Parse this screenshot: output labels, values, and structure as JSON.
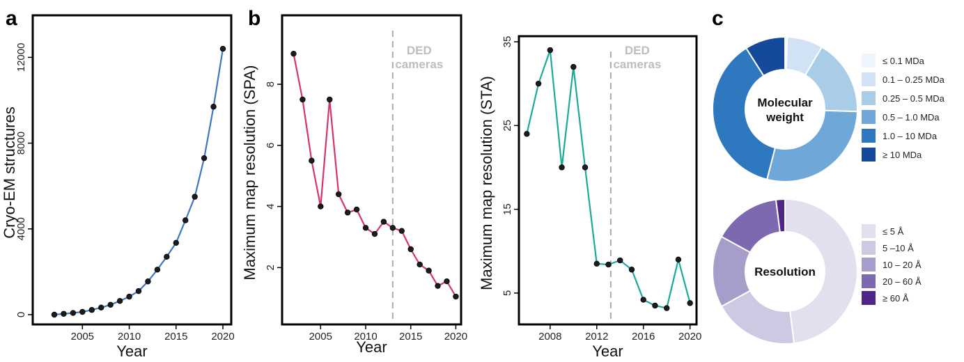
{
  "panel_labels": {
    "a": "a",
    "b": "b",
    "c": "c"
  },
  "chart_data": [
    {
      "id": "a",
      "type": "line",
      "xlabel": "Year",
      "ylabel": "Cryo-EM structures",
      "xlim": [
        2002,
        2020
      ],
      "ylim": [
        0,
        12500
      ],
      "xticks": [
        "2005",
        "2010",
        "2015",
        "2020"
      ],
      "yticks": [
        "0",
        "4000",
        "8000",
        "12000"
      ],
      "color": "#3a78c4",
      "x": [
        2002,
        2003,
        2004,
        2005,
        2006,
        2007,
        2008,
        2009,
        2010,
        2011,
        2012,
        2013,
        2014,
        2015,
        2016,
        2017,
        2018,
        2019,
        2020
      ],
      "y": [
        0,
        40,
        80,
        130,
        220,
        330,
        460,
        640,
        840,
        1100,
        1550,
        2100,
        2700,
        3350,
        4400,
        5500,
        7300,
        9700,
        12400
      ]
    },
    {
      "id": "b-left",
      "type": "line",
      "xlabel": "Year",
      "ylabel": "Maximum map resolution (SPA)",
      "xlim": [
        2001.5,
        2020.2
      ],
      "ylim": [
        0.8,
        9.3
      ],
      "xticks": [
        "2005",
        "2010",
        "2015",
        "2020"
      ],
      "yticks": [
        "2",
        "4",
        "6",
        "8"
      ],
      "color": "#d6336c",
      "annotation": {
        "text_line1": "DED",
        "text_line2": "cameras",
        "x": 2013
      },
      "x": [
        2002,
        2003,
        2004,
        2005,
        2006,
        2007,
        2008,
        2009,
        2010,
        2011,
        2012,
        2013,
        2014,
        2015,
        2016,
        2017,
        2018,
        2019,
        2020
      ],
      "y": [
        9.0,
        7.5,
        5.5,
        4.0,
        7.5,
        4.4,
        3.8,
        3.9,
        3.3,
        3.1,
        3.5,
        3.3,
        3.2,
        2.6,
        2.1,
        1.9,
        1.4,
        1.55,
        1.05
      ]
    },
    {
      "id": "b-right",
      "type": "line",
      "xlabel": "Year",
      "ylabel": "Maximum map resolution (STA)",
      "xlim": [
        2005.8,
        2020.2
      ],
      "ylim": [
        3,
        35
      ],
      "xticks": [
        "2008",
        "2012",
        "2016",
        "2020"
      ],
      "yticks": [
        "5",
        "15",
        "25",
        "35"
      ],
      "color": "#1aaa9a",
      "annotation": {
        "text_line1": "DED",
        "text_line2": "cameras",
        "x": 2013.2
      },
      "x": [
        2006,
        2007,
        2008,
        2009,
        2010,
        2011,
        2012,
        2013,
        2014,
        2015,
        2016,
        2017,
        2018,
        2019,
        2020
      ],
      "y": [
        24,
        30,
        34,
        20,
        32,
        20,
        8.5,
        8.4,
        8.9,
        7.8,
        4.2,
        3.5,
        3.2,
        9.0,
        3.8
      ]
    },
    {
      "id": "c-top",
      "type": "pie",
      "center_label_line1": "Molecular",
      "center_label_line2": "weight",
      "slices": [
        {
          "label": "≤ 0.1 MDa",
          "value": 0.5,
          "color": "#eef5fc"
        },
        {
          "label": "0.1 – 0.25 MDa",
          "value": 8,
          "color": "#d0e2f3"
        },
        {
          "label": "0.25 – 0.5 MDa",
          "value": 17,
          "color": "#a9cde6"
        },
        {
          "label": "0.5 – 1.0 MDa",
          "value": 28.5,
          "color": "#6fa8d8"
        },
        {
          "label": "1.0 – 10 MDa",
          "value": 37,
          "color": "#2e78bf"
        },
        {
          "label": "≥ 10 MDa",
          "value": 9,
          "color": "#15499a"
        }
      ]
    },
    {
      "id": "c-bottom",
      "type": "pie",
      "center_label_line1": "Resolution",
      "center_label_line2": "",
      "slices": [
        {
          "label": "≤ 5 Å",
          "value": 48,
          "color": "#e2e0ef"
        },
        {
          "label": "5 –10 Å",
          "value": 19,
          "color": "#cdc9e3"
        },
        {
          "label": "10 – 20 Å",
          "value": 16,
          "color": "#a69dca"
        },
        {
          "label": "20 – 60 Å",
          "value": 15,
          "color": "#7c69b0"
        },
        {
          "label": "≥ 60 Å",
          "value": 2,
          "color": "#4f2687"
        }
      ]
    }
  ]
}
